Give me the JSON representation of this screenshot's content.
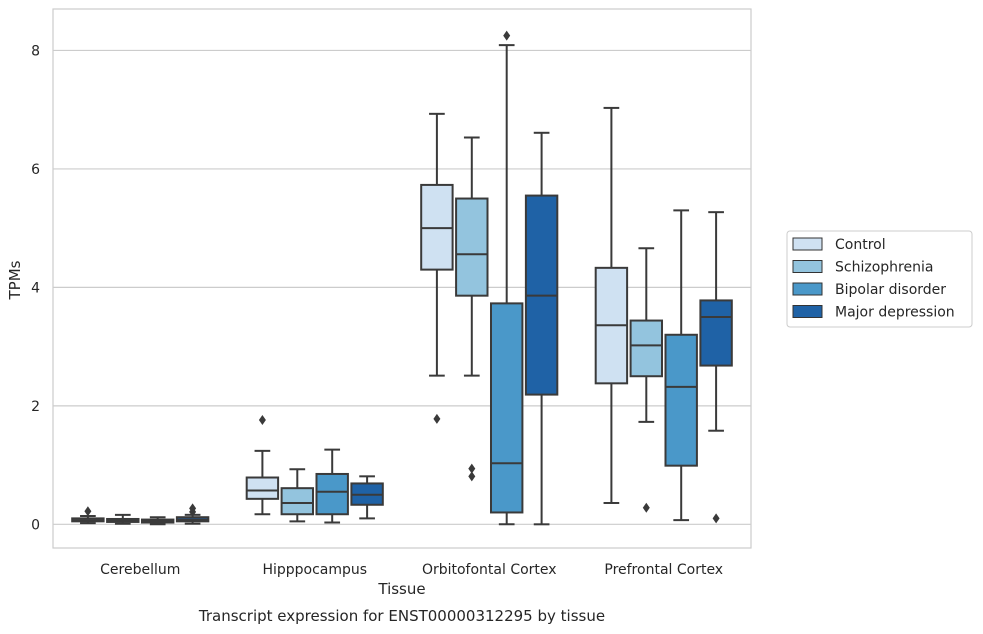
{
  "chart_data": {
    "type": "box",
    "xlabel": "Tissue",
    "ylabel": "TPMs",
    "caption": "Transcript expression for ENST00000312295 by tissue",
    "ylim": [
      -0.4,
      8.7
    ],
    "yticks": [
      0,
      2,
      4,
      6,
      8
    ],
    "grid": "horizontal",
    "legend_placement": "right",
    "categories": [
      "Cerebellum",
      "Hipppocampus",
      "Orbitofontal Cortex",
      "Prefrontal Cortex"
    ],
    "series": [
      {
        "name": "Control",
        "color": "#cfe1f2",
        "boxes": [
          {
            "whislo": 0.02,
            "q1": 0.05,
            "med": 0.07,
            "q3": 0.1,
            "whishi": 0.14,
            "fliers": [
              0.22
            ]
          },
          {
            "whislo": 0.17,
            "q1": 0.43,
            "med": 0.57,
            "q3": 0.79,
            "whishi": 1.24,
            "fliers": [
              1.76
            ]
          },
          {
            "whislo": 2.51,
            "q1": 4.3,
            "med": 5.0,
            "q3": 5.73,
            "whishi": 6.93,
            "fliers": [
              1.78
            ]
          },
          {
            "whislo": 0.36,
            "q1": 2.38,
            "med": 3.36,
            "q3": 4.33,
            "whishi": 7.03,
            "fliers": []
          }
        ]
      },
      {
        "name": "Schizophrenia",
        "color": "#93c4de",
        "boxes": [
          {
            "whislo": 0.01,
            "q1": 0.04,
            "med": 0.06,
            "q3": 0.09,
            "whishi": 0.16,
            "fliers": []
          },
          {
            "whislo": 0.05,
            "q1": 0.17,
            "med": 0.36,
            "q3": 0.61,
            "whishi": 0.93,
            "fliers": []
          },
          {
            "whislo": 2.51,
            "q1": 3.86,
            "med": 4.56,
            "q3": 5.5,
            "whishi": 6.53,
            "fliers": [
              0.94,
              0.81
            ]
          },
          {
            "whislo": 1.73,
            "q1": 2.5,
            "med": 3.02,
            "q3": 3.44,
            "whishi": 4.66,
            "fliers": [
              0.28
            ]
          }
        ]
      },
      {
        "name": "Bipolar disorder",
        "color": "#4a98c9",
        "boxes": [
          {
            "whislo": 0.0,
            "q1": 0.03,
            "med": 0.05,
            "q3": 0.08,
            "whishi": 0.12,
            "fliers": []
          },
          {
            "whislo": 0.03,
            "q1": 0.17,
            "med": 0.55,
            "q3": 0.85,
            "whishi": 1.26,
            "fliers": []
          },
          {
            "whislo": 0.0,
            "q1": 0.2,
            "med": 1.03,
            "q3": 3.73,
            "whishi": 8.09,
            "fliers": [
              8.25
            ]
          },
          {
            "whislo": 0.07,
            "q1": 0.99,
            "med": 2.32,
            "q3": 3.2,
            "whishi": 5.3,
            "fliers": []
          }
        ]
      },
      {
        "name": "Major depression",
        "color": "#1f62a6",
        "boxes": [
          {
            "whislo": 0.01,
            "q1": 0.05,
            "med": 0.08,
            "q3": 0.12,
            "whishi": 0.16,
            "fliers": [
              0.27,
              0.21
            ]
          },
          {
            "whislo": 0.1,
            "q1": 0.33,
            "med": 0.5,
            "q3": 0.69,
            "whishi": 0.81,
            "fliers": []
          },
          {
            "whislo": 0.0,
            "q1": 2.19,
            "med": 3.86,
            "q3": 5.55,
            "whishi": 6.61,
            "fliers": []
          },
          {
            "whislo": 1.58,
            "q1": 2.68,
            "med": 3.5,
            "q3": 3.78,
            "whishi": 5.27,
            "fliers": [
              0.1
            ]
          }
        ]
      }
    ]
  }
}
